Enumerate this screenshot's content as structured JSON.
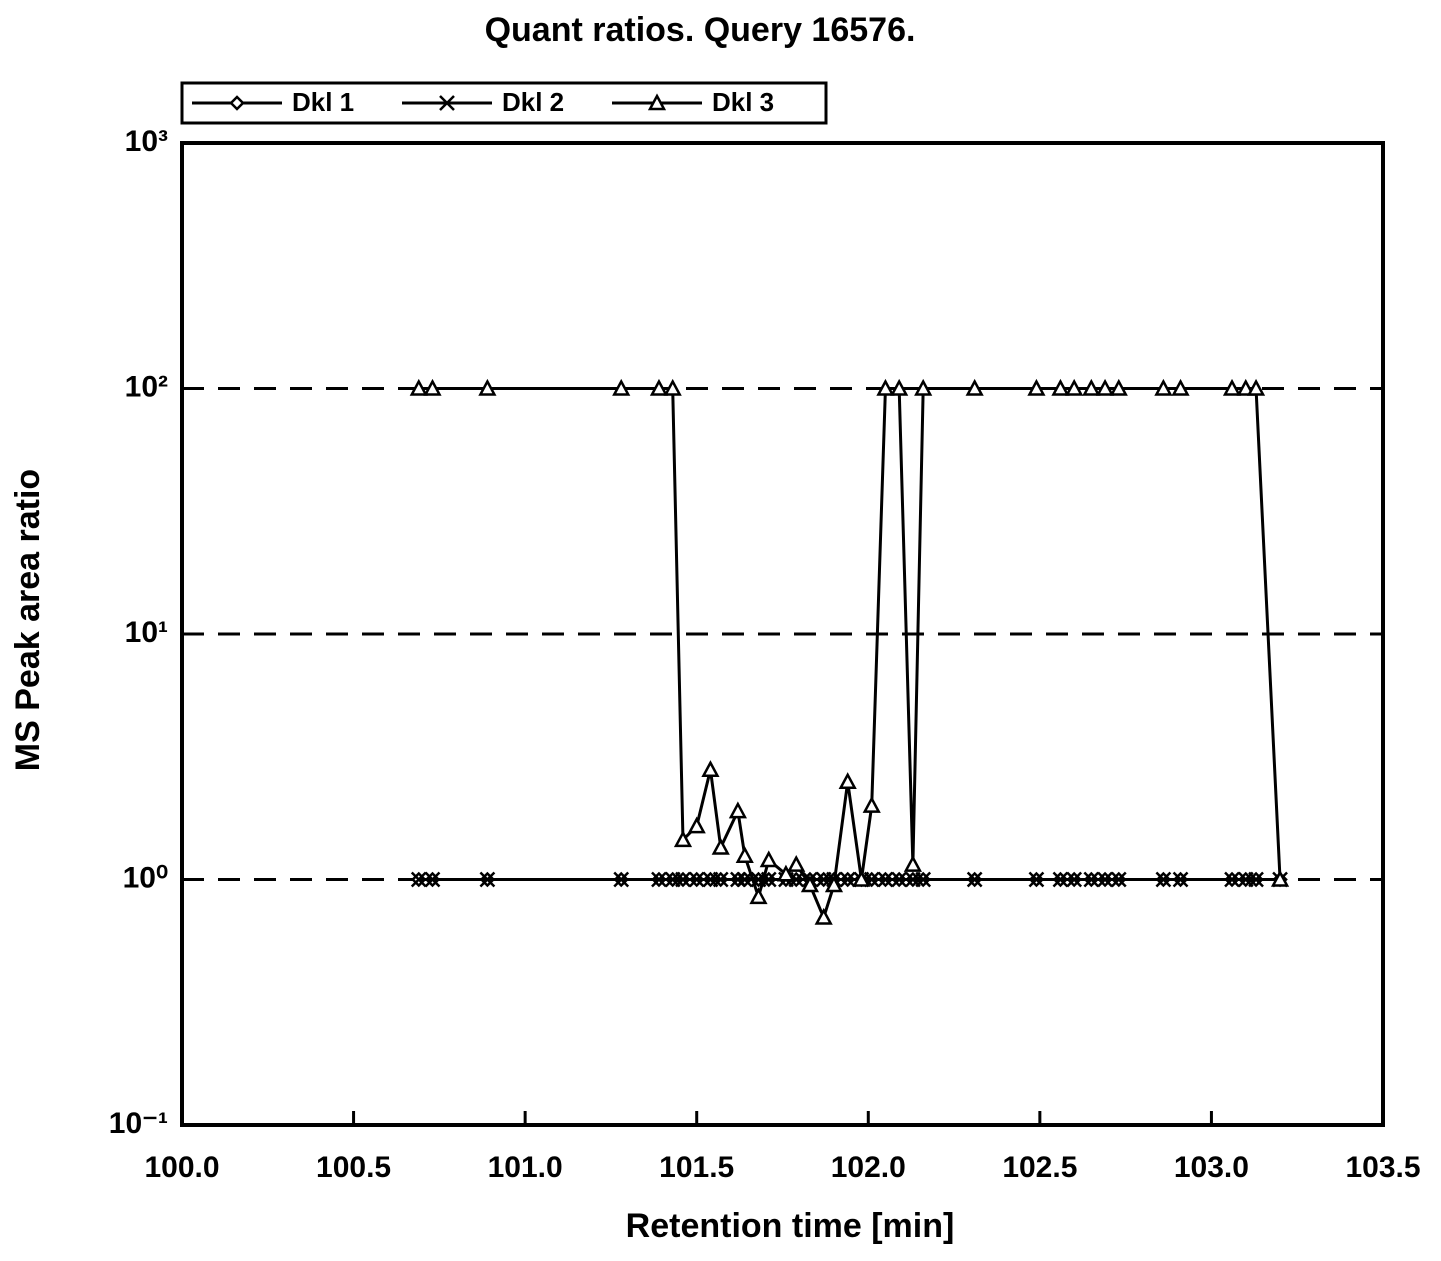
{
  "chart_data": {
    "type": "line",
    "title": "Quant ratios. Query 16576.",
    "xlabel": "Retention time [min]",
    "ylabel": "MS Peak area ratio",
    "x": [
      100.69,
      100.73,
      100.89,
      101.28,
      101.39,
      101.43,
      101.46,
      101.5,
      101.54,
      101.57,
      101.62,
      101.64,
      101.68,
      101.71,
      101.76,
      101.79,
      101.83,
      101.87,
      101.9,
      101.94,
      101.98,
      102.01,
      102.05,
      102.09,
      102.13,
      102.16,
      102.31,
      102.49,
      102.56,
      102.6,
      102.65,
      102.69,
      102.73,
      102.86,
      102.91,
      103.06,
      103.1,
      103.13,
      103.2
    ],
    "series": [
      {
        "name": "Dkl 1",
        "color": "#000000",
        "marker": "diamond",
        "values": [
          1,
          1,
          1,
          1,
          1,
          1,
          1,
          1,
          1,
          1,
          1,
          1,
          1,
          1,
          1,
          1,
          1,
          1,
          1,
          1,
          1,
          1,
          1,
          1,
          1,
          1,
          1,
          1,
          1,
          1,
          1,
          1,
          1,
          1,
          1,
          1,
          1,
          1,
          1
        ]
      },
      {
        "name": "Dkl 2",
        "color": "#000000",
        "marker": "x",
        "values": [
          1,
          1,
          1,
          1,
          1,
          1,
          1,
          1,
          1,
          1,
          1,
          1,
          1,
          1,
          1,
          1,
          1,
          1,
          1,
          1,
          1,
          1,
          1,
          1,
          1,
          1,
          1,
          1,
          1,
          1,
          1,
          1,
          1,
          1,
          1,
          1,
          1,
          1,
          1
        ]
      },
      {
        "name": "Dkl 3",
        "color": "#000000",
        "marker": "triangle",
        "values": [
          100,
          100,
          100,
          100,
          100,
          100,
          1.45,
          1.65,
          2.8,
          1.35,
          1.9,
          1.25,
          0.85,
          1.2,
          1.05,
          1.15,
          0.95,
          0.7,
          0.95,
          2.5,
          1.0,
          2.0,
          100,
          100,
          1.15,
          100,
          100,
          100,
          100,
          100,
          100,
          100,
          100,
          100,
          100,
          100,
          100,
          100,
          1.0
        ]
      }
    ],
    "xlim": [
      100,
      103.5
    ],
    "xticks": [
      {
        "value": 100,
        "label": "100.0"
      },
      {
        "value": 100.5,
        "label": "100.5"
      },
      {
        "value": 101,
        "label": "101.0"
      },
      {
        "value": 101.5,
        "label": "101.5"
      },
      {
        "value": 102,
        "label": "102.0"
      },
      {
        "value": 102.5,
        "label": "102.5"
      },
      {
        "value": 103,
        "label": "103.0"
      },
      {
        "value": 103.5,
        "label": "103.5"
      }
    ],
    "ylim": [
      0.1,
      1000
    ],
    "yticks": [
      {
        "value": 0.1,
        "label": "10⁻¹"
      },
      {
        "value": 1,
        "label": "10⁰"
      },
      {
        "value": 10,
        "label": "10¹"
      },
      {
        "value": 100,
        "label": "10²"
      },
      {
        "value": 1000,
        "label": "10³"
      }
    ],
    "ylog": true,
    "grid": true,
    "legend": "top-left"
  }
}
